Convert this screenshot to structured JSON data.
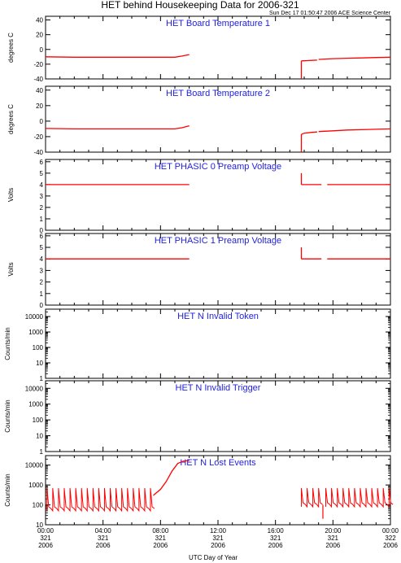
{
  "header": {
    "title": "HET behind Housekeeping Data for 2006-321",
    "timestamp": "Sun Dec 17 01:50:47 2006 ACE Science Center"
  },
  "xaxis": {
    "label": "UTC Day of Year",
    "range_hours": [
      0,
      24
    ],
    "ticks": [
      {
        "hour": 0,
        "time": "00:00",
        "doy": "321",
        "year": "2006"
      },
      {
        "hour": 4,
        "time": "04:00",
        "doy": "321",
        "year": "2006"
      },
      {
        "hour": 8,
        "time": "08:00",
        "doy": "321",
        "year": "2006"
      },
      {
        "hour": 12,
        "time": "12:00",
        "doy": "321",
        "year": "2006"
      },
      {
        "hour": 16,
        "time": "16:00",
        "doy": "321",
        "year": "2006"
      },
      {
        "hour": 20,
        "time": "20:00",
        "doy": "321",
        "year": "2006"
      },
      {
        "hour": 24,
        "time": "00:00",
        "doy": "322",
        "year": "2006"
      }
    ]
  },
  "colors": {
    "data": "#ff0000",
    "title": "#2222dd",
    "axis": "#000000"
  },
  "chart_data": [
    {
      "type": "line",
      "title": "HET Board Temperature 1",
      "ylabel": "degrees C",
      "scale": "linear",
      "ylim": [
        -40,
        45
      ],
      "yticks": [
        -40,
        -20,
        0,
        20,
        40
      ],
      "segments": [
        {
          "x": [
            0,
            2,
            4,
            6,
            8,
            9,
            9.5,
            10
          ],
          "y": [
            -10,
            -10.5,
            -10.5,
            -10.5,
            -10.5,
            -10.5,
            -9,
            -7
          ]
        },
        {
          "x": [
            17.8,
            18.9
          ],
          "y": [
            -15.5,
            -14.5
          ]
        },
        {
          "x": [
            19.0,
            20,
            21,
            22,
            23,
            24
          ],
          "y": [
            -13.5,
            -12.5,
            -12,
            -11.5,
            -11,
            -10.5
          ]
        }
      ],
      "drops": [
        {
          "x": 17.8,
          "from": -15.5,
          "to": -40
        }
      ]
    },
    {
      "type": "line",
      "title": "HET Board Temperature 2",
      "ylabel": "degrees C",
      "scale": "linear",
      "ylim": [
        -40,
        45
      ],
      "yticks": [
        -40,
        -20,
        0,
        20,
        40
      ],
      "segments": [
        {
          "x": [
            0,
            2,
            4,
            6,
            8,
            9,
            9.5,
            10
          ],
          "y": [
            -9.5,
            -10,
            -10,
            -10,
            -10,
            -10,
            -8.5,
            -6
          ]
        },
        {
          "x": [
            17.8,
            18,
            18.5,
            18.9
          ],
          "y": [
            -17,
            -15.5,
            -14.5,
            -14
          ]
        },
        {
          "x": [
            19.0,
            20,
            21,
            22,
            23,
            24
          ],
          "y": [
            -13.5,
            -12.5,
            -11.5,
            -11,
            -10.5,
            -10
          ]
        }
      ],
      "drops": [
        {
          "x": 17.8,
          "from": -17,
          "to": -40
        }
      ]
    },
    {
      "type": "line",
      "title": "HET PHASIC 0 Preamp Voltage",
      "ylabel": "Volts",
      "scale": "linear",
      "ylim": [
        0,
        6.2
      ],
      "yticks": [
        0,
        1,
        2,
        3,
        4,
        5,
        6
      ],
      "segments": [
        {
          "x": [
            0,
            10
          ],
          "y": [
            4,
            4
          ]
        },
        {
          "x": [
            17.8,
            19.2
          ],
          "y": [
            4,
            4
          ]
        },
        {
          "x": [
            19.6,
            24
          ],
          "y": [
            4,
            4
          ]
        }
      ],
      "spikes": [
        {
          "x": 17.8,
          "from": 4,
          "to": 5
        }
      ]
    },
    {
      "type": "line",
      "title": "HET PHASIC 1 Preamp Voltage",
      "ylabel": "Volts",
      "scale": "linear",
      "ylim": [
        0,
        6.2
      ],
      "yticks": [
        0,
        1,
        2,
        3,
        4,
        5,
        6
      ],
      "segments": [
        {
          "x": [
            0,
            10
          ],
          "y": [
            4,
            4
          ]
        },
        {
          "x": [
            17.8,
            19.2
          ],
          "y": [
            4,
            4
          ]
        },
        {
          "x": [
            19.6,
            24
          ],
          "y": [
            4,
            4
          ]
        }
      ],
      "spikes": [
        {
          "x": 17.8,
          "from": 4,
          "to": 5
        }
      ]
    },
    {
      "type": "line",
      "title": "HET N Invalid Token",
      "ylabel": "Counts/min",
      "scale": "log",
      "ylim": [
        1,
        30000
      ],
      "yticks": [
        1,
        10,
        100,
        1000,
        10000
      ],
      "segments": []
    },
    {
      "type": "line",
      "title": "HET N Invalid Trigger",
      "ylabel": "Counts/min",
      "scale": "log",
      "ylim": [
        1,
        30000
      ],
      "yticks": [
        1,
        10,
        100,
        1000,
        10000
      ],
      "segments": []
    },
    {
      "type": "line",
      "title": "HET N Lost Events",
      "ylabel": "Counts/min",
      "scale": "log",
      "ylim": [
        10,
        30000
      ],
      "yticks": [
        10,
        100,
        1000,
        10000
      ],
      "bursts": [
        {
          "start": 0.1,
          "end": 7.5,
          "period": 0.4,
          "low": 50,
          "high": 700
        },
        {
          "start": 17.8,
          "end": 19.2,
          "period": 0.4,
          "low": 80,
          "high": 700
        },
        {
          "start": 19.5,
          "end": 24,
          "period": 0.4,
          "low": 80,
          "high": 700
        }
      ],
      "ramp": {
        "x": [
          7.5,
          8,
          8.4,
          8.8,
          9.2,
          9.6,
          10
        ],
        "y": [
          300,
          600,
          1500,
          5000,
          12000,
          16000,
          17000
        ]
      },
      "dips": [
        {
          "x": 19.3,
          "value": 20
        }
      ]
    }
  ]
}
